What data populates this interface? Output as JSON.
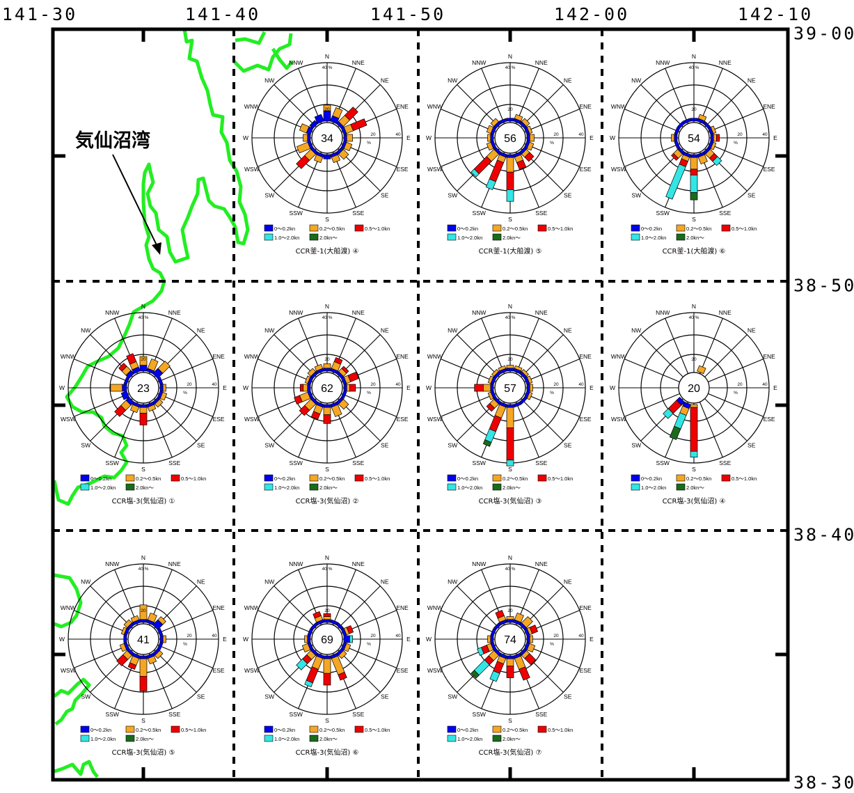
{
  "longitude_labels": [
    "141-30",
    "141-40",
    "141-50",
    "142-00",
    "142-10"
  ],
  "latitude_labels": [
    "39-00",
    "38-50",
    "38-40",
    "38-30"
  ],
  "place_label": "気仙沼湾",
  "colors": {
    "frame": "#000000",
    "coastline": "#22ee22",
    "bin_0_0.2": "#0000ee",
    "bin_0.2_0.5": "#f5a623",
    "bin_0.5_1.0": "#ee0000",
    "bin_1.0_2.0": "#33e5e5",
    "bin_2.0_plus": "#1a6b1a"
  },
  "directions": [
    "N",
    "NNE",
    "NE",
    "ENE",
    "E",
    "ESE",
    "SE",
    "SSE",
    "S",
    "SSW",
    "SW",
    "WSW",
    "W",
    "WNW",
    "NW",
    "NNW"
  ],
  "ring_labels": {
    "r20": "20",
    "r40": "40",
    "percent_top": "40 %",
    "percent_mark": "%"
  },
  "legend": [
    "0～0.2kn",
    "0.2～0.5kn",
    "0.5～1.0kn",
    "1.0～2.0kn",
    "2.0kn～"
  ],
  "chart_data": [
    {
      "type": "wind-rose",
      "station": "CCR釜-1(大船渡) ④",
      "calm": "34",
      "rays": [
        [
          7,
          4,
          0,
          0,
          0
        ],
        [
          4,
          6,
          0,
          0,
          0
        ],
        [
          2,
          6,
          8,
          0,
          0
        ],
        [
          2,
          5,
          10,
          0,
          0
        ],
        [
          2,
          4,
          0,
          0,
          0
        ],
        [
          2,
          4,
          0,
          0,
          0
        ],
        [
          2,
          5,
          0,
          0,
          0
        ],
        [
          2,
          4,
          0,
          0,
          0
        ],
        [
          3,
          0,
          0,
          0,
          0
        ],
        [
          2,
          4,
          0,
          0,
          0
        ],
        [
          2,
          6,
          8,
          0,
          0
        ],
        [
          2,
          8,
          0,
          0,
          0
        ],
        [
          2,
          3,
          0,
          0,
          0
        ],
        [
          3,
          5,
          0,
          0,
          0
        ],
        [
          3,
          0,
          0,
          0,
          0
        ],
        [
          5,
          0,
          0,
          0,
          0
        ]
      ]
    },
    {
      "type": "wind-rose",
      "station": "CCR釜-1(大船渡) ⑤",
      "calm": "56",
      "rays": [
        [
          2,
          0,
          0,
          0,
          0
        ],
        [
          2,
          3,
          0,
          0,
          0
        ],
        [
          2,
          3,
          0,
          0,
          0
        ],
        [
          2,
          2,
          0,
          0,
          0
        ],
        [
          2,
          3,
          0,
          0,
          0
        ],
        [
          2,
          3,
          0,
          0,
          0
        ],
        [
          2,
          3,
          4,
          0,
          0
        ],
        [
          2,
          4,
          5,
          0,
          0
        ],
        [
          2,
          10,
          12,
          8,
          0
        ],
        [
          2,
          4,
          14,
          6,
          0
        ],
        [
          2,
          7,
          12,
          3,
          0
        ],
        [
          2,
          3,
          0,
          0,
          0
        ],
        [
          2,
          2,
          0,
          0,
          0
        ],
        [
          2,
          3,
          0,
          0,
          0
        ],
        [
          2,
          3,
          0,
          0,
          0
        ],
        [
          2,
          0,
          0,
          0,
          0
        ]
      ]
    },
    {
      "type": "wind-rose",
      "station": "CCR釜-1(大船渡) ⑥",
      "calm": "54",
      "rays": [
        [
          2,
          0,
          0,
          0,
          0
        ],
        [
          2,
          3,
          0,
          0,
          0
        ],
        [
          2,
          0,
          0,
          0,
          0
        ],
        [
          2,
          2,
          0,
          0,
          0
        ],
        [
          2,
          2,
          2,
          0,
          0
        ],
        [
          2,
          2,
          0,
          0,
          0
        ],
        [
          2,
          4,
          3,
          4,
          0
        ],
        [
          2,
          5,
          0,
          0,
          0
        ],
        [
          2,
          8,
          4,
          12,
          5
        ],
        [
          2,
          3,
          4,
          24,
          0
        ],
        [
          2,
          4,
          2,
          0,
          0
        ],
        [
          2,
          0,
          0,
          0,
          0
        ],
        [
          2,
          2,
          0,
          0,
          0
        ],
        [
          2,
          0,
          0,
          0,
          0
        ],
        [
          2,
          0,
          0,
          0,
          0
        ],
        [
          2,
          0,
          0,
          0,
          0
        ]
      ]
    },
    {
      "type": "wind-rose",
      "station": "CCR塩-3(気仙沼) ①",
      "calm": "23",
      "rays": [
        [
          4,
          6,
          0,
          0,
          0
        ],
        [
          2,
          7,
          0,
          0,
          0
        ],
        [
          5,
          7,
          0,
          0,
          0
        ],
        [
          2,
          0,
          0,
          0,
          0
        ],
        [
          2,
          2,
          0,
          0,
          0
        ],
        [
          2,
          3,
          0,
          0,
          0
        ],
        [
          2,
          3,
          0,
          0,
          0
        ],
        [
          2,
          3,
          0,
          0,
          0
        ],
        [
          2,
          4,
          8,
          0,
          0
        ],
        [
          2,
          4,
          0,
          0,
          0
        ],
        [
          3,
          5,
          6,
          0,
          0
        ],
        [
          4,
          0,
          0,
          0,
          0
        ],
        [
          3,
          8,
          0,
          0,
          0
        ],
        [
          2,
          0,
          0,
          0,
          0
        ],
        [
          3,
          4,
          3,
          0,
          0
        ],
        [
          3,
          4,
          6,
          0,
          0
        ]
      ]
    },
    {
      "type": "wind-rose",
      "station": "CCR塩-3(気仙沼) ②",
      "calm": "62",
      "rays": [
        [
          2,
          3,
          0,
          0,
          0
        ],
        [
          2,
          5,
          3,
          0,
          0
        ],
        [
          2,
          3,
          2,
          0,
          0
        ],
        [
          2,
          3,
          6,
          0,
          0
        ],
        [
          2,
          2,
          4,
          0,
          0
        ],
        [
          2,
          0,
          0,
          0,
          0
        ],
        [
          2,
          5,
          0,
          0,
          0
        ],
        [
          2,
          7,
          0,
          0,
          0
        ],
        [
          2,
          5,
          6,
          0,
          0
        ],
        [
          2,
          5,
          4,
          0,
          0
        ],
        [
          2,
          6,
          5,
          0,
          0
        ],
        [
          2,
          6,
          4,
          0,
          0
        ],
        [
          2,
          3,
          2,
          0,
          0
        ],
        [
          2,
          2,
          0,
          0,
          0
        ],
        [
          2,
          3,
          0,
          0,
          0
        ],
        [
          2,
          3,
          0,
          0,
          0
        ]
      ]
    },
    {
      "type": "wind-rose",
      "station": "CCR塩-3(気仙沼) ③",
      "calm": "57",
      "rays": [
        [
          2,
          2,
          0,
          0,
          0
        ],
        [
          2,
          2,
          0,
          0,
          0
        ],
        [
          2,
          2,
          0,
          0,
          0
        ],
        [
          2,
          2,
          0,
          0,
          0
        ],
        [
          2,
          2,
          0,
          0,
          0
        ],
        [
          2,
          2,
          0,
          0,
          0
        ],
        [
          2,
          0,
          0,
          0,
          0
        ],
        [
          2,
          0,
          0,
          0,
          0
        ],
        [
          2,
          14,
          22,
          4,
          0
        ],
        [
          2,
          8,
          10,
          8,
          3
        ],
        [
          2,
          4,
          3,
          0,
          0
        ],
        [
          2,
          2,
          0,
          0,
          0
        ],
        [
          2,
          5,
          6,
          0,
          0
        ],
        [
          2,
          2,
          0,
          0,
          0
        ],
        [
          2,
          2,
          0,
          0,
          0
        ],
        [
          2,
          2,
          0,
          0,
          0
        ]
      ]
    },
    {
      "type": "wind-rose",
      "station": "CCR塩-3(気仙沼) ④",
      "calm": "20",
      "rays": [
        [
          0,
          0,
          0,
          0,
          0
        ],
        [
          0,
          4,
          0,
          0,
          0
        ],
        [
          0,
          0,
          0,
          0,
          0
        ],
        [
          0,
          0,
          0,
          0,
          0
        ],
        [
          0,
          0,
          0,
          0,
          0
        ],
        [
          0,
          0,
          0,
          0,
          0
        ],
        [
          0,
          0,
          0,
          0,
          0
        ],
        [
          0,
          0,
          0,
          0,
          0
        ],
        [
          0,
          2,
          30,
          4,
          0
        ],
        [
          3,
          5,
          0,
          10,
          8
        ],
        [
          3,
          0,
          8,
          5,
          0
        ],
        [
          0,
          0,
          0,
          0,
          0
        ],
        [
          0,
          0,
          0,
          0,
          0
        ],
        [
          0,
          0,
          0,
          0,
          0
        ],
        [
          0,
          0,
          0,
          0,
          0
        ],
        [
          0,
          0,
          0,
          0,
          0
        ]
      ]
    },
    {
      "type": "wind-rose",
      "station": "CCR塩-3(気仙沼) ⑤",
      "calm": "41",
      "rays": [
        [
          2,
          10,
          0,
          0,
          0
        ],
        [
          2,
          5,
          0,
          0,
          0
        ],
        [
          5,
          3,
          0,
          0,
          0
        ],
        [
          2,
          0,
          0,
          0,
          0
        ],
        [
          2,
          2,
          0,
          0,
          0
        ],
        [
          2,
          0,
          0,
          0,
          0
        ],
        [
          2,
          3,
          0,
          0,
          0
        ],
        [
          2,
          4,
          0,
          0,
          0
        ],
        [
          2,
          12,
          10,
          0,
          0
        ],
        [
          2,
          5,
          3,
          0,
          0
        ],
        [
          2,
          4,
          6,
          0,
          0
        ],
        [
          2,
          3,
          0,
          0,
          0
        ],
        [
          2,
          0,
          0,
          0,
          0
        ],
        [
          2,
          2,
          0,
          0,
          0
        ],
        [
          2,
          3,
          0,
          0,
          0
        ],
        [
          2,
          3,
          0,
          0,
          0
        ]
      ]
    },
    {
      "type": "wind-rose",
      "station": "CCR塩-3(気仙沼) ⑥",
      "calm": "69",
      "rays": [
        [
          2,
          2,
          2,
          0,
          0
        ],
        [
          2,
          0,
          0,
          0,
          0
        ],
        [
          2,
          0,
          0,
          0,
          0
        ],
        [
          2,
          2,
          3,
          0,
          0
        ],
        [
          4,
          0,
          0,
          2,
          0
        ],
        [
          2,
          3,
          0,
          0,
          0
        ],
        [
          2,
          3,
          0,
          0,
          0
        ],
        [
          2,
          12,
          4,
          0,
          0
        ],
        [
          2,
          10,
          8,
          0,
          0
        ],
        [
          2,
          8,
          10,
          3,
          0
        ],
        [
          2,
          4,
          4,
          6,
          0
        ],
        [
          2,
          4,
          0,
          0,
          0
        ],
        [
          2,
          2,
          0,
          0,
          0
        ],
        [
          2,
          0,
          0,
          0,
          0
        ],
        [
          2,
          0,
          0,
          0,
          0
        ],
        [
          2,
          3,
          3,
          0,
          0
        ]
      ]
    },
    {
      "type": "wind-rose",
      "station": "CCR塩-3(気仙沼) ⑦",
      "calm": "74",
      "rays": [
        [
          2,
          2,
          0,
          0,
          0
        ],
        [
          2,
          5,
          0,
          0,
          0
        ],
        [
          2,
          6,
          0,
          0,
          0
        ],
        [
          2,
          2,
          4,
          0,
          0
        ],
        [
          2,
          2,
          0,
          0,
          0
        ],
        [
          2,
          4,
          0,
          0,
          0
        ],
        [
          2,
          3,
          6,
          0,
          0
        ],
        [
          2,
          8,
          8,
          0,
          0
        ],
        [
          2,
          5,
          8,
          0,
          0
        ],
        [
          2,
          4,
          7,
          6,
          0
        ],
        [
          2,
          5,
          4,
          10,
          3
        ],
        [
          2,
          3,
          4,
          3,
          0
        ],
        [
          2,
          2,
          0,
          0,
          0
        ],
        [
          2,
          0,
          0,
          0,
          0
        ],
        [
          2,
          0,
          0,
          0,
          0
        ],
        [
          2,
          3,
          4,
          0,
          0
        ]
      ]
    }
  ]
}
